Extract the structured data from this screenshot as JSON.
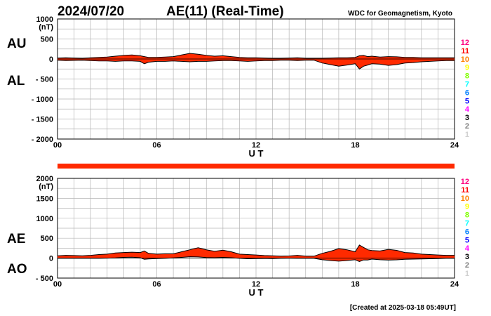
{
  "header": {
    "date": "2024/07/20",
    "title": "AE(11) (Real-Time)",
    "source": "WDC for Geomagnetism, Kyoto"
  },
  "footer": {
    "created": "[Created at 2025-03-18 05:49UT]"
  },
  "colors": {
    "fill": "#ff2a00",
    "line": "#000000",
    "grid": "#b4b4b4",
    "band": "#ff2a00"
  },
  "legend": {
    "labels": [
      "12",
      "11",
      "10",
      "9",
      "8",
      "7",
      "6",
      "5",
      "4",
      "3",
      "2",
      "1"
    ],
    "colors": [
      "#ff0080",
      "#ff0000",
      "#ff8000",
      "#ffff00",
      "#80ff00",
      "#00ffff",
      "#0080ff",
      "#0000ff",
      "#ff00ff",
      "#000000",
      "#808080",
      "#d0d0d0"
    ]
  },
  "chart_data": [
    {
      "type": "area",
      "id": "au-al",
      "unit": "(nT)",
      "xlabel": "U T",
      "ylim": [
        -2000,
        1000
      ],
      "yticks": [
        1000,
        500,
        0,
        -500,
        -1000,
        -1500,
        -2000
      ],
      "ytick_labels": [
        "1000",
        "500",
        "0",
        "- 500",
        "- 1000",
        "- 1500",
        "- 2000"
      ],
      "xlim": [
        0,
        24
      ],
      "xticks": [
        0,
        6,
        12,
        18,
        24
      ],
      "xtick_labels": [
        "00",
        "06",
        "12",
        "18",
        "24"
      ],
      "upper_label": "AU",
      "lower_label": "AL",
      "x": [
        0,
        0.5,
        1,
        1.5,
        2,
        2.5,
        3,
        3.5,
        4,
        4.5,
        5,
        5.25,
        5.5,
        6,
        6.5,
        7,
        7.5,
        8,
        8.5,
        9,
        9.5,
        10,
        10.5,
        11,
        11.5,
        12,
        12.5,
        13,
        13.5,
        14,
        14.5,
        15,
        15.5,
        16,
        16.5,
        17,
        17.5,
        18,
        18.25,
        18.5,
        18.75,
        19,
        19.5,
        20,
        20.5,
        21,
        21.5,
        22,
        22.5,
        23,
        23.5,
        24
      ],
      "series": [
        {
          "name": "AU",
          "values": [
            25,
            30,
            25,
            20,
            30,
            40,
            50,
            70,
            90,
            100,
            80,
            60,
            40,
            40,
            50,
            60,
            100,
            140,
            120,
            90,
            70,
            80,
            60,
            40,
            30,
            30,
            25,
            20,
            20,
            25,
            30,
            20,
            20,
            20,
            25,
            30,
            30,
            40,
            80,
            90,
            60,
            70,
            50,
            60,
            55,
            40,
            40,
            30,
            30,
            30,
            30,
            30
          ]
        },
        {
          "name": "AL",
          "values": [
            -30,
            -40,
            -35,
            -30,
            -40,
            -50,
            -50,
            -60,
            -50,
            -50,
            -60,
            -120,
            -80,
            -60,
            -60,
            -50,
            -60,
            -70,
            -60,
            -60,
            -50,
            -40,
            -40,
            -50,
            -60,
            -50,
            -40,
            -40,
            -30,
            -30,
            -40,
            -30,
            -30,
            -100,
            -140,
            -180,
            -150,
            -120,
            -250,
            -180,
            -150,
            -120,
            -130,
            -160,
            -140,
            -100,
            -90,
            -70,
            -60,
            -50,
            -40,
            -40
          ]
        }
      ]
    },
    {
      "type": "area",
      "id": "ae-ao",
      "unit": "(nT)",
      "xlabel": "U T",
      "ylim": [
        -500,
        2000
      ],
      "yticks": [
        2000,
        1500,
        1000,
        500,
        0,
        -500
      ],
      "ytick_labels": [
        "2000",
        "1500",
        "1000",
        "500",
        "0",
        "- 500"
      ],
      "xlim": [
        0,
        24
      ],
      "xticks": [
        0,
        6,
        12,
        18,
        24
      ],
      "xtick_labels": [
        "00",
        "06",
        "12",
        "18",
        "24"
      ],
      "upper_label": "AE",
      "lower_label": "AO",
      "x": [
        0,
        0.5,
        1,
        1.5,
        2,
        2.5,
        3,
        3.5,
        4,
        4.5,
        5,
        5.25,
        5.5,
        6,
        6.5,
        7,
        7.5,
        8,
        8.5,
        9,
        9.5,
        10,
        10.5,
        11,
        11.5,
        12,
        12.5,
        13,
        13.5,
        14,
        14.5,
        15,
        15.5,
        16,
        16.5,
        17,
        17.5,
        18,
        18.25,
        18.5,
        18.75,
        19,
        19.5,
        20,
        20.5,
        21,
        21.5,
        22,
        22.5,
        23,
        23.5,
        24
      ],
      "series": [
        {
          "name": "AE",
          "values": [
            60,
            70,
            65,
            60,
            70,
            90,
            100,
            130,
            140,
            150,
            140,
            180,
            120,
            100,
            110,
            110,
            160,
            210,
            260,
            210,
            170,
            200,
            160,
            100,
            90,
            80,
            65,
            60,
            50,
            55,
            70,
            50,
            50,
            120,
            170,
            240,
            210,
            160,
            330,
            270,
            210,
            190,
            180,
            220,
            195,
            140,
            130,
            100,
            90,
            80,
            70,
            70
          ]
        },
        {
          "name": "AO",
          "values": [
            -5,
            -5,
            -5,
            -5,
            -5,
            -5,
            0,
            5,
            20,
            25,
            10,
            -30,
            -20,
            -10,
            -5,
            5,
            20,
            35,
            30,
            15,
            10,
            20,
            10,
            -5,
            -15,
            -10,
            -8,
            -10,
            -5,
            -3,
            -5,
            -5,
            -5,
            -40,
            -60,
            -75,
            -60,
            -40,
            -85,
            -45,
            -45,
            -25,
            -40,
            -50,
            -42,
            -30,
            -25,
            -20,
            -15,
            -10,
            -5,
            -5
          ]
        }
      ]
    }
  ]
}
